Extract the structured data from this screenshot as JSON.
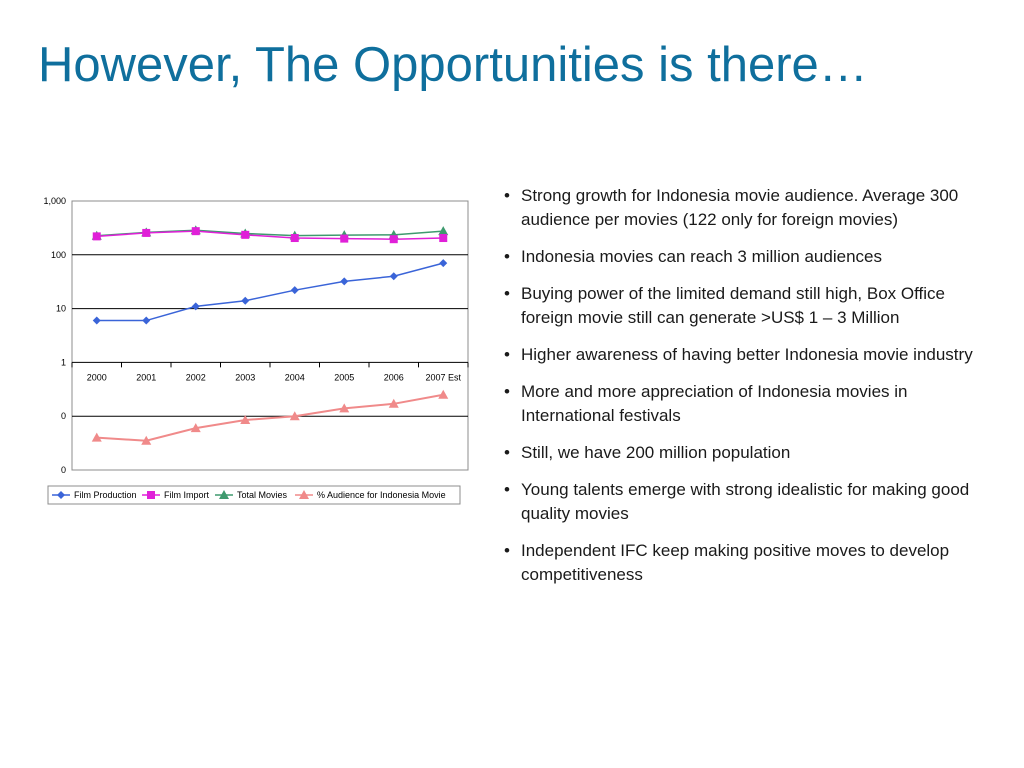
{
  "slide": {
    "title": "However, The Opportunities is there…"
  },
  "bullets": [
    "Strong growth for Indonesia movie audience. Average 300 audience per movies (122 only for foreign movies)",
    "Indonesia movies can reach 3 million audiences",
    "Buying power of the limited demand still high, Box Office foreign movie still can generate >US$ 1 – 3 Million",
    "Higher awareness of having better Indonesia movie industry",
    "More and more appreciation of Indonesia movies in International festivals",
    "Still, we have 200 million population",
    "Young talents emerge with strong idealistic for making good quality movies",
    "Independent IFC keep making positive moves to develop competitiveness"
  ],
  "chart_data": {
    "type": "line",
    "title": "",
    "xlabel": "",
    "ylabel": "",
    "y_scale": "log",
    "ylim": [
      0.01,
      1000
    ],
    "y_ticks": [
      {
        "value": 1000,
        "label": "1,000"
      },
      {
        "value": 100,
        "label": "100"
      },
      {
        "value": 10,
        "label": "10"
      },
      {
        "value": 1,
        "label": "1"
      },
      {
        "value": 0.1,
        "label": "0"
      },
      {
        "value": 0.01,
        "label": "0"
      }
    ],
    "grid": true,
    "legend": "bottom",
    "categories": [
      "2000",
      "2001",
      "2002",
      "2003",
      "2004",
      "2005",
      "2006",
      "2007 Est"
    ],
    "series": [
      {
        "name": "Film Production",
        "color": "#3a64d8",
        "marker": "diamond",
        "values": [
          6,
          6,
          11,
          14,
          22,
          32,
          40,
          70
        ]
      },
      {
        "name": "Film Import",
        "color": "#e020d8",
        "marker": "square",
        "values": [
          220,
          255,
          275,
          235,
          205,
          200,
          195,
          205
        ]
      },
      {
        "name": "Total Movies",
        "color": "#3e9a6e",
        "marker": "triangle",
        "values": [
          226,
          261,
          286,
          249,
          227,
          232,
          235,
          275
        ]
      },
      {
        "name": "% Audience for Indonesia Movie",
        "color": "#f08a8a",
        "marker": "triangle",
        "values": [
          0.04,
          0.035,
          0.06,
          0.085,
          0.1,
          0.14,
          0.17,
          0.25
        ]
      }
    ]
  }
}
